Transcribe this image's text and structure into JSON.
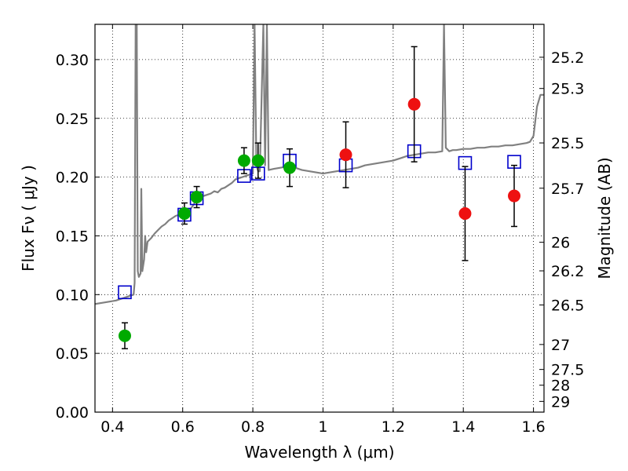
{
  "chart_data": {
    "type": "scatter",
    "xlabel": "Wavelength  λ (μm)",
    "ylabel": "Flux  Fν  ( μJy )",
    "y2label": "Magnitude (AB)",
    "xlim": [
      0.35,
      1.63
    ],
    "ylim": [
      0.0,
      0.33
    ],
    "grid": true,
    "x_ticks": [
      {
        "value": 0.4,
        "label": "0.4"
      },
      {
        "value": 0.6,
        "label": "0.6"
      },
      {
        "value": 0.8,
        "label": "0.8"
      },
      {
        "value": 1.0,
        "label": "1"
      },
      {
        "value": 1.2,
        "label": "1.2"
      },
      {
        "value": 1.4,
        "label": "1.4"
      },
      {
        "value": 1.6,
        "label": "1.6"
      }
    ],
    "y_ticks": [
      {
        "value": 0.0,
        "label": "0.00"
      },
      {
        "value": 0.05,
        "label": "0.05"
      },
      {
        "value": 0.1,
        "label": "0.10"
      },
      {
        "value": 0.15,
        "label": "0.15"
      },
      {
        "value": 0.2,
        "label": "0.20"
      },
      {
        "value": 0.25,
        "label": "0.25"
      },
      {
        "value": 0.3,
        "label": "0.30"
      }
    ],
    "y2_ticks": [
      {
        "value": 25.2,
        "label": "25.2"
      },
      {
        "value": 25.3,
        "label": "25.3"
      },
      {
        "value": 25.5,
        "label": "25.5"
      },
      {
        "value": 25.7,
        "label": "25.7"
      },
      {
        "value": 26.0,
        "label": "26"
      },
      {
        "value": 26.2,
        "label": "26.2"
      },
      {
        "value": 26.5,
        "label": "26.5"
      },
      {
        "value": 27.0,
        "label": "27"
      },
      {
        "value": 27.5,
        "label": "27.5"
      },
      {
        "value": 28.0,
        "label": "28"
      },
      {
        "value": 29.0,
        "label": "29"
      }
    ],
    "model_spectrum": {
      "color": "#808080",
      "points": [
        [
          0.35,
          0.092
        ],
        [
          0.37,
          0.093
        ],
        [
          0.39,
          0.094
        ],
        [
          0.41,
          0.095
        ],
        [
          0.43,
          0.097
        ],
        [
          0.45,
          0.099
        ],
        [
          0.46,
          0.1
        ],
        [
          0.463,
          0.11
        ],
        [
          0.466,
          0.33
        ],
        [
          0.469,
          0.33
        ],
        [
          0.472,
          0.12
        ],
        [
          0.475,
          0.115
        ],
        [
          0.48,
          0.118
        ],
        [
          0.482,
          0.19
        ],
        [
          0.485,
          0.12
        ],
        [
          0.49,
          0.13
        ],
        [
          0.493,
          0.15
        ],
        [
          0.496,
          0.136
        ],
        [
          0.5,
          0.145
        ],
        [
          0.51,
          0.148
        ],
        [
          0.52,
          0.152
        ],
        [
          0.53,
          0.155
        ],
        [
          0.54,
          0.158
        ],
        [
          0.55,
          0.16
        ],
        [
          0.56,
          0.163
        ],
        [
          0.57,
          0.165
        ],
        [
          0.58,
          0.167
        ],
        [
          0.59,
          0.168
        ],
        [
          0.6,
          0.168
        ],
        [
          0.61,
          0.17
        ],
        [
          0.62,
          0.172
        ],
        [
          0.63,
          0.176
        ],
        [
          0.64,
          0.181
        ],
        [
          0.65,
          0.183
        ],
        [
          0.66,
          0.184
        ],
        [
          0.67,
          0.185
        ],
        [
          0.68,
          0.186
        ],
        [
          0.69,
          0.188
        ],
        [
          0.7,
          0.187
        ],
        [
          0.71,
          0.19
        ],
        [
          0.72,
          0.191
        ],
        [
          0.73,
          0.193
        ],
        [
          0.74,
          0.195
        ],
        [
          0.75,
          0.198
        ],
        [
          0.76,
          0.199
        ],
        [
          0.77,
          0.2
        ],
        [
          0.78,
          0.201
        ],
        [
          0.79,
          0.202
        ],
        [
          0.8,
          0.203
        ],
        [
          0.805,
          0.33
        ],
        [
          0.81,
          0.21
        ],
        [
          0.815,
          0.205
        ],
        [
          0.82,
          0.205
        ],
        [
          0.83,
          0.33
        ],
        [
          0.835,
          0.21
        ],
        [
          0.84,
          0.33
        ],
        [
          0.845,
          0.206
        ],
        [
          0.86,
          0.207
        ],
        [
          0.88,
          0.208
        ],
        [
          0.9,
          0.209
        ],
        [
          0.92,
          0.208
        ],
        [
          0.94,
          0.206
        ],
        [
          0.96,
          0.205
        ],
        [
          0.98,
          0.204
        ],
        [
          1.0,
          0.203
        ],
        [
          1.02,
          0.204
        ],
        [
          1.04,
          0.205
        ],
        [
          1.06,
          0.206
        ],
        [
          1.08,
          0.207
        ],
        [
          1.1,
          0.208
        ],
        [
          1.12,
          0.21
        ],
        [
          1.14,
          0.211
        ],
        [
          1.16,
          0.212
        ],
        [
          1.18,
          0.213
        ],
        [
          1.2,
          0.214
        ],
        [
          1.22,
          0.216
        ],
        [
          1.24,
          0.218
        ],
        [
          1.26,
          0.219
        ],
        [
          1.28,
          0.22
        ],
        [
          1.3,
          0.221
        ],
        [
          1.32,
          0.221
        ],
        [
          1.34,
          0.222
        ],
        [
          1.345,
          0.33
        ],
        [
          1.35,
          0.225
        ],
        [
          1.36,
          0.222
        ],
        [
          1.37,
          0.223
        ],
        [
          1.38,
          0.223
        ],
        [
          1.4,
          0.224
        ],
        [
          1.42,
          0.224
        ],
        [
          1.44,
          0.225
        ],
        [
          1.46,
          0.225
        ],
        [
          1.48,
          0.226
        ],
        [
          1.5,
          0.226
        ],
        [
          1.52,
          0.227
        ],
        [
          1.54,
          0.227
        ],
        [
          1.56,
          0.228
        ],
        [
          1.58,
          0.229
        ],
        [
          1.59,
          0.23
        ],
        [
          1.6,
          0.235
        ],
        [
          1.61,
          0.26
        ],
        [
          1.62,
          0.27
        ],
        [
          1.63,
          0.27
        ]
      ]
    },
    "photometry_model": {
      "marker": "open-square",
      "color": "#0000cc",
      "points": [
        {
          "x": 0.435,
          "y": 0.102
        },
        {
          "x": 0.605,
          "y": 0.168
        },
        {
          "x": 0.64,
          "y": 0.182
        },
        {
          "x": 0.775,
          "y": 0.201
        },
        {
          "x": 0.815,
          "y": 0.203
        },
        {
          "x": 0.905,
          "y": 0.214
        },
        {
          "x": 1.065,
          "y": 0.21
        },
        {
          "x": 1.26,
          "y": 0.222
        },
        {
          "x": 1.405,
          "y": 0.212
        },
        {
          "x": 1.545,
          "y": 0.213
        }
      ]
    },
    "photometry_optical": {
      "marker": "filled-circle",
      "color": "#00aa00",
      "points": [
        {
          "x": 0.435,
          "y": 0.065,
          "err": 0.011
        },
        {
          "x": 0.605,
          "y": 0.169,
          "err": 0.009
        },
        {
          "x": 0.64,
          "y": 0.183,
          "err": 0.009
        },
        {
          "x": 0.775,
          "y": 0.214,
          "err": 0.011
        },
        {
          "x": 0.815,
          "y": 0.214,
          "err": 0.015
        },
        {
          "x": 0.905,
          "y": 0.208,
          "err": 0.016
        }
      ]
    },
    "photometry_nir": {
      "marker": "filled-circle",
      "color": "#ee1111",
      "points": [
        {
          "x": 1.065,
          "y": 0.219,
          "err": 0.028
        },
        {
          "x": 1.26,
          "y": 0.262,
          "err": 0.049
        },
        {
          "x": 1.405,
          "y": 0.169,
          "err": 0.04
        },
        {
          "x": 1.545,
          "y": 0.184,
          "err": 0.026
        }
      ]
    }
  }
}
